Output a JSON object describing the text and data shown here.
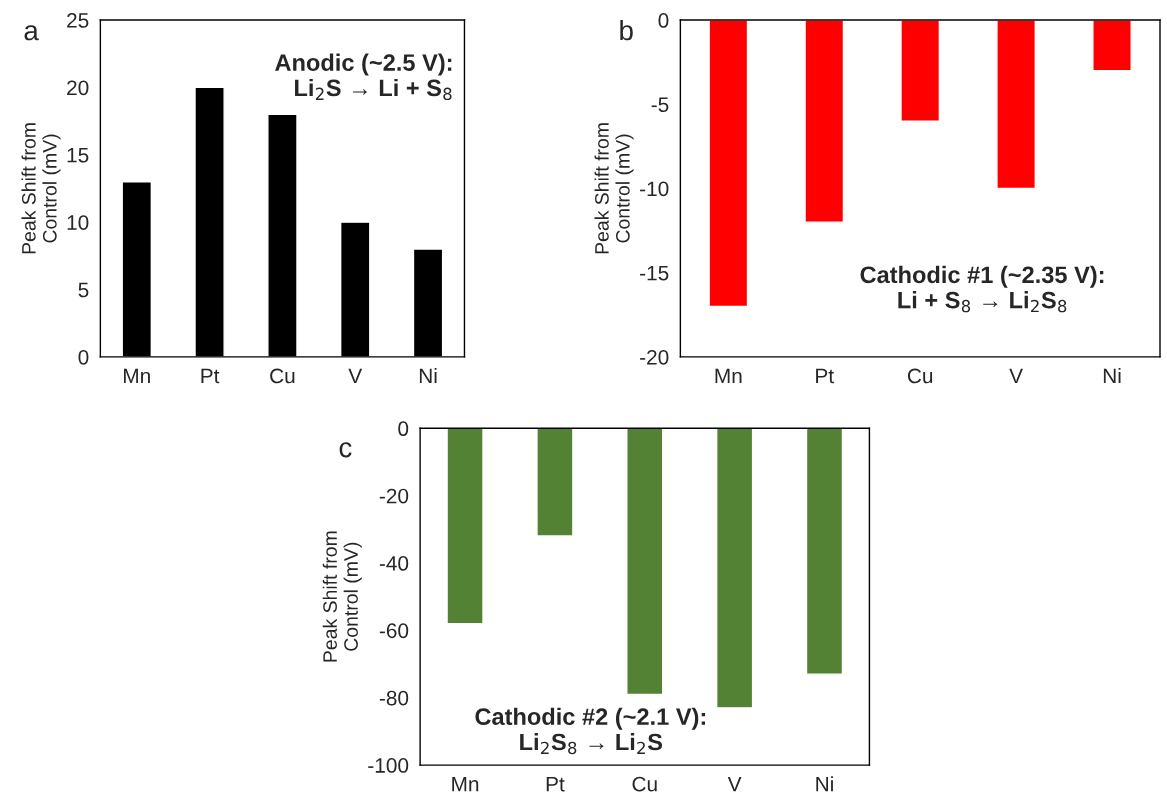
{
  "chart_data": [
    {
      "type": "bar",
      "categories": [
        "Mn",
        "Pt",
        "Cu",
        "V",
        "Ni"
      ],
      "values": [
        13,
        20,
        18,
        10,
        8
      ],
      "color": "#000000",
      "ylabel": "Peak Shift from\nControl (mV)",
      "ylim": [
        0,
        25
      ],
      "yticks": [
        0,
        5,
        10,
        15,
        20,
        25
      ],
      "annotations": [
        "a",
        "Anodic (~2.5 V):\nLi$_{2}$S → Li + S$_{8}$"
      ]
    },
    {
      "type": "bar",
      "categories": [
        "Mn",
        "Pt",
        "Cu",
        "V",
        "Ni"
      ],
      "values": [
        -17,
        -12,
        -6,
        -10,
        -3
      ],
      "color": "#ff0000",
      "ylabel": "Peak Shift from\nControl (mV)",
      "ylim": [
        -20,
        0
      ],
      "yticks": [
        -20,
        -15,
        -10,
        -5,
        0
      ],
      "annotations": [
        "b",
        "Cathodic #1 (~2.35 V):\nLi + S$_{8}$ → Li$_{2}$S$_{8}$"
      ]
    },
    {
      "type": "bar",
      "categories": [
        "Mn",
        "Pt",
        "Cu",
        "V",
        "Ni"
      ],
      "values": [
        -58,
        -32,
        -79,
        -83,
        -73
      ],
      "color": "#548235",
      "ylabel": "Peak Shift from\nControl (mV)",
      "ylim": [
        -100,
        0
      ],
      "yticks": [
        -100,
        -80,
        -60,
        -40,
        -20,
        0
      ],
      "annotations": [
        "c",
        "Cathodic #2 (~2.1 V):\nLi$_{2}$S$_{8}$ → Li$_{2}$S"
      ]
    }
  ]
}
